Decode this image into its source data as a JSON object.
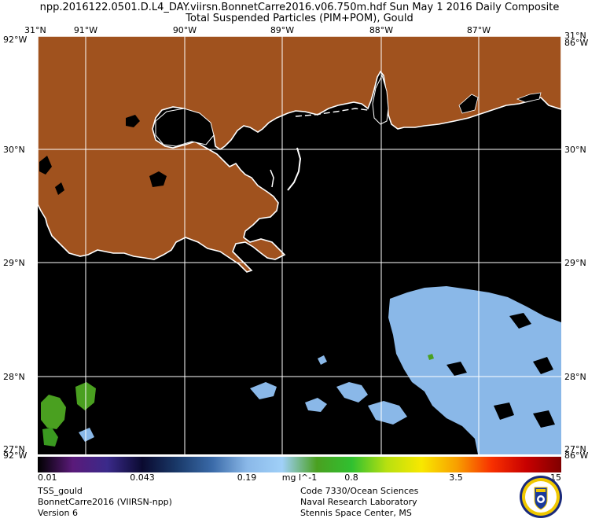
{
  "header": {
    "line1": "npp.2016122.0501.D.L4_DAY.viirsn.BonnetCarre2016.v06.750m.hdf     Sun May  1 2016 Daily Composite",
    "line2": "Total Suspended Particles (PIM+POM), Gould"
  },
  "axes": {
    "lon_labels": [
      "91°W",
      "90°W",
      "89°W",
      "88°W",
      "87°W"
    ],
    "lat_labels": [
      "30°N",
      "29°N",
      "28°N"
    ],
    "corner_tl": "31°N",
    "corner_tl2": "92°W",
    "corner_tr": "31°N",
    "corner_tr2": "86°W",
    "corner_bl": "92°W",
    "corner_bl2": "27°N",
    "corner_br": "86°W",
    "corner_br2": "27°N"
  },
  "colorbar": {
    "ticks": [
      "0.01",
      "0.043",
      "0.19",
      "0.8",
      "3.5",
      "15"
    ],
    "units": "mg l^-1",
    "stops": [
      "#000000",
      "#5a1a7a",
      "#3a2a8a",
      "#0a0a30",
      "#1a3a6a",
      "#3a6aa8",
      "#8ab8e8",
      "#a0d0f8",
      "#4aa020",
      "#30c030",
      "#b8e010",
      "#f8e800",
      "#f8a000",
      "#f83000",
      "#c80000",
      "#800000"
    ]
  },
  "footer_left": [
    "TSS_gould",
    "BonnetCarre2016 (VIIRSN-npp)",
    "Version 6"
  ],
  "footer_right": [
    "Code 7330/Ocean Sciences",
    "Naval Research Laboratory",
    "Stennis Space Center, MS"
  ],
  "colors": {
    "land": "#a0521e",
    "water": "#000000",
    "grid": "#ffffff",
    "tss_low": "#8ab8e8",
    "tss_green": "#4aa020"
  }
}
